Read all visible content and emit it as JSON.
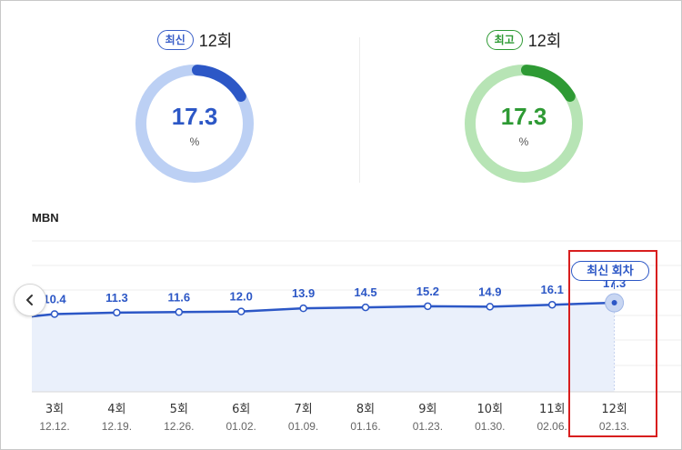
{
  "latest": {
    "badge": "최신",
    "episode": "12회",
    "value": "17.3",
    "unit": "%",
    "fraction": 0.173,
    "color": "#2c57c6",
    "track": "#bcd0f4"
  },
  "peak": {
    "badge": "최고",
    "episode": "12회",
    "value": "17.3",
    "unit": "%",
    "fraction": 0.173,
    "color": "#2e9a34",
    "track": "#b7e4b5"
  },
  "channel": "MBN",
  "latest_tag": "최신 회차",
  "chart_data": {
    "type": "area",
    "categories": [
      "3회",
      "4회",
      "5회",
      "6회",
      "7회",
      "8회",
      "9회",
      "10회",
      "11회",
      "12회"
    ],
    "dates": [
      "12.12.",
      "12.19.",
      "12.26.",
      "01.02.",
      "01.09.",
      "01.16.",
      "01.23.",
      "01.30.",
      "02.06.",
      "02.13."
    ],
    "values": [
      10.4,
      11.3,
      11.6,
      12.0,
      13.9,
      14.5,
      15.2,
      14.9,
      16.1,
      17.3
    ],
    "value_labels": [
      "10.4",
      "11.3",
      "11.6",
      "12.0",
      "13.9",
      "14.5",
      "15.2",
      "14.9",
      "16.1",
      "17.3"
    ],
    "highlight_index": 9,
    "ylim": [
      -37,
      55
    ],
    "grid": true,
    "color": "#2c57c6",
    "fill": "#eaf0fb"
  }
}
